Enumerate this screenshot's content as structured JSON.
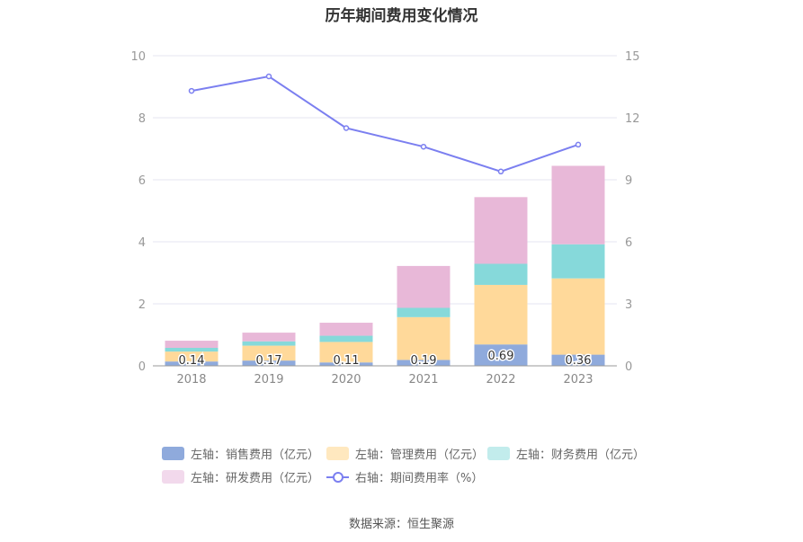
{
  "title": "历年期间费用变化情况",
  "source": "数据来源：恒生聚源",
  "colors": {
    "sales": "#8faadc",
    "management": "#ffd99a",
    "finance": "#86d9da",
    "rnd": "#e8b8d8",
    "rate_line": "#7b7ff0",
    "grid": "#e6e6f0",
    "axis_text": "#999999"
  },
  "legend": [
    {
      "key": "sales",
      "label": "左轴：销售费用（亿元）",
      "color": "#8faadc",
      "kind": "bar"
    },
    {
      "key": "management",
      "label": "左轴：管理费用（亿元）",
      "color": "#ffe8bf",
      "kind": "bar"
    },
    {
      "key": "finance",
      "label": "左轴：财务费用（亿元）",
      "color": "#c2ecec",
      "kind": "bar"
    },
    {
      "key": "rnd",
      "label": "左轴：研发费用（亿元）",
      "color": "#f2d9ec",
      "kind": "bar"
    },
    {
      "key": "rate",
      "label": "右轴：期间费用率（%）",
      "color": "#7b7ff0",
      "kind": "line"
    }
  ],
  "chart_data": {
    "type": "bar",
    "stacked": true,
    "categories": [
      "2018",
      "2019",
      "2020",
      "2021",
      "2022",
      "2023"
    ],
    "left_axis": {
      "ylim": [
        0,
        10
      ],
      "ticks": [
        0,
        2,
        4,
        6,
        8,
        10
      ]
    },
    "right_axis": {
      "ylim": [
        0,
        15
      ],
      "ticks": [
        0,
        3,
        6,
        9,
        12,
        15
      ]
    },
    "series": [
      {
        "key": "sales",
        "name": "左轴：销售费用（亿元）",
        "axis": "left",
        "values": [
          0.14,
          0.17,
          0.11,
          0.19,
          0.69,
          0.36
        ],
        "labels": [
          "0.14",
          "0.17",
          "0.11",
          "0.19",
          "0.69",
          "0.36"
        ]
      },
      {
        "key": "management",
        "name": "左轴：管理费用（亿元）",
        "axis": "left",
        "values": [
          0.32,
          0.48,
          0.66,
          1.38,
          1.92,
          2.46
        ]
      },
      {
        "key": "finance",
        "name": "左轴：财务费用（亿元）",
        "axis": "left",
        "values": [
          0.12,
          0.14,
          0.2,
          0.3,
          0.68,
          1.1
        ]
      },
      {
        "key": "rnd",
        "name": "左轴：研发费用（亿元）",
        "axis": "left",
        "values": [
          0.23,
          0.28,
          0.42,
          1.35,
          2.15,
          2.53
        ]
      },
      {
        "key": "rate",
        "name": "右轴：期间费用率（%）",
        "axis": "right",
        "type": "line",
        "values": [
          13.3,
          14.0,
          11.5,
          10.6,
          9.4,
          10.7
        ]
      }
    ],
    "legend_position": "bottom",
    "grid": true
  }
}
